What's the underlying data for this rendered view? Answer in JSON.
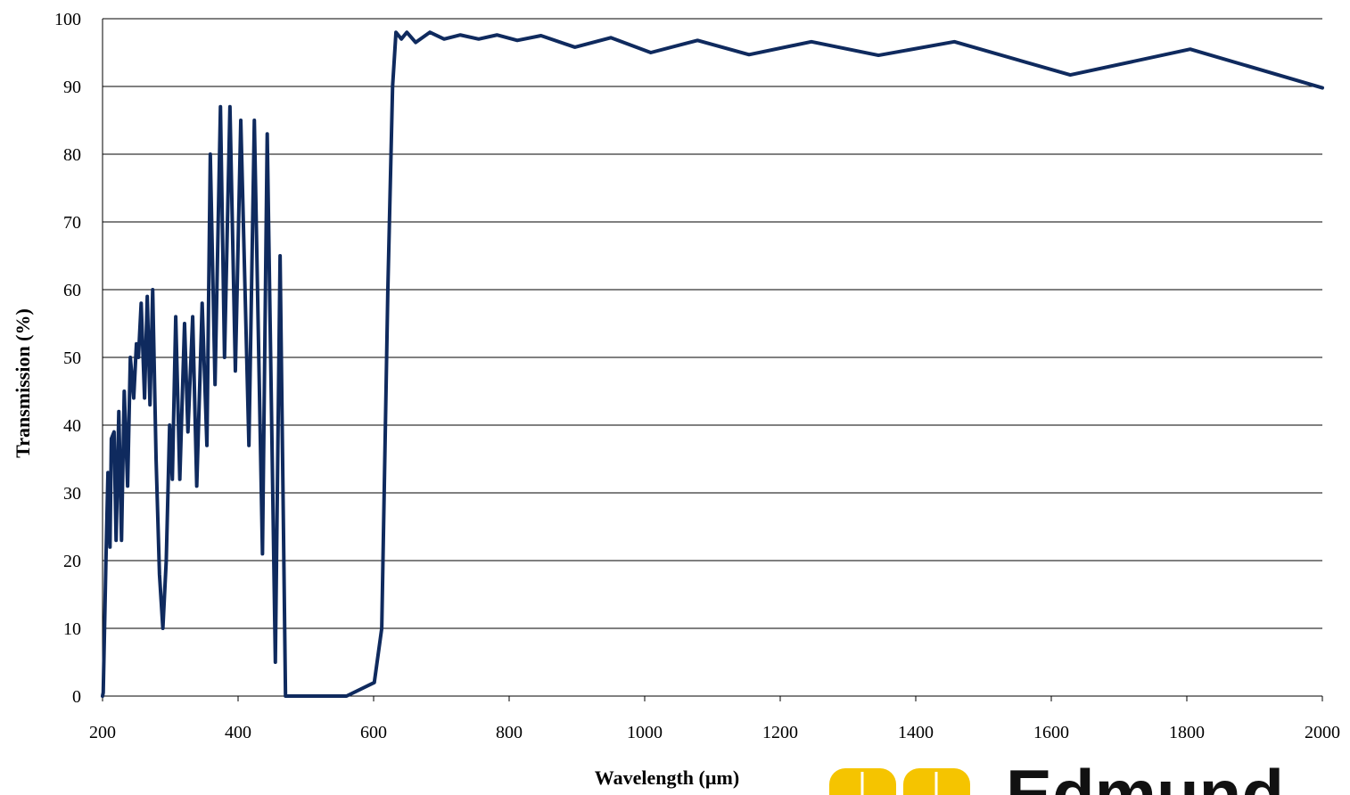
{
  "chart_data": {
    "type": "line",
    "x_label": "Wavelength (µm)",
    "y_label": "Transmission (%)",
    "xlim": [
      200,
      2000
    ],
    "xticks": [
      200,
      400,
      600,
      800,
      1000,
      1200,
      1400,
      1600,
      1800,
      2000
    ],
    "ylim": [
      0,
      100
    ],
    "yticks": [
      0,
      10,
      20,
      30,
      40,
      50,
      60,
      70,
      80,
      90,
      100
    ],
    "grid": true,
    "series": [
      {
        "color": "#0f2a5e",
        "x": [
          200,
          201,
          205,
          208,
          211,
          213,
          217,
          220,
          224,
          228,
          232,
          237,
          241,
          246,
          250,
          253,
          257,
          262,
          266,
          270,
          274,
          279,
          284,
          289,
          294,
          299,
          303,
          308,
          314,
          321,
          326,
          333,
          339,
          347,
          354,
          359,
          366,
          374,
          380,
          388,
          396,
          404,
          416,
          424,
          436,
          443,
          455,
          462,
          470,
          500,
          560,
          601,
          612,
          621,
          628,
          633,
          641,
          649,
          662,
          683,
          704,
          728,
          755,
          782,
          812,
          847,
          897,
          950,
          1009,
          1078,
          1154,
          1246,
          1345,
          1457,
          1628,
          1805,
          2000
        ],
        "values": [
          0,
          0.5,
          20,
          33,
          22,
          38,
          39,
          23,
          42,
          23,
          45,
          31,
          50,
          44,
          52,
          50,
          58,
          44,
          59,
          43,
          60,
          35,
          18,
          10,
          20,
          40,
          32,
          56,
          32,
          55,
          39,
          56,
          31,
          58,
          37,
          80,
          46,
          87,
          50,
          87,
          48,
          85,
          37,
          85,
          21,
          83,
          5,
          65,
          0,
          0,
          0,
          2,
          10,
          60,
          90,
          98,
          97,
          98,
          96.5,
          98,
          97,
          97.6,
          97,
          97.6,
          96.8,
          97.5,
          95.8,
          97.2,
          95,
          96.8,
          94.7,
          96.6,
          94.6,
          96.6,
          91.7,
          95.5,
          89.8
        ]
      }
    ]
  },
  "logo": {
    "text": "Edmund"
  }
}
